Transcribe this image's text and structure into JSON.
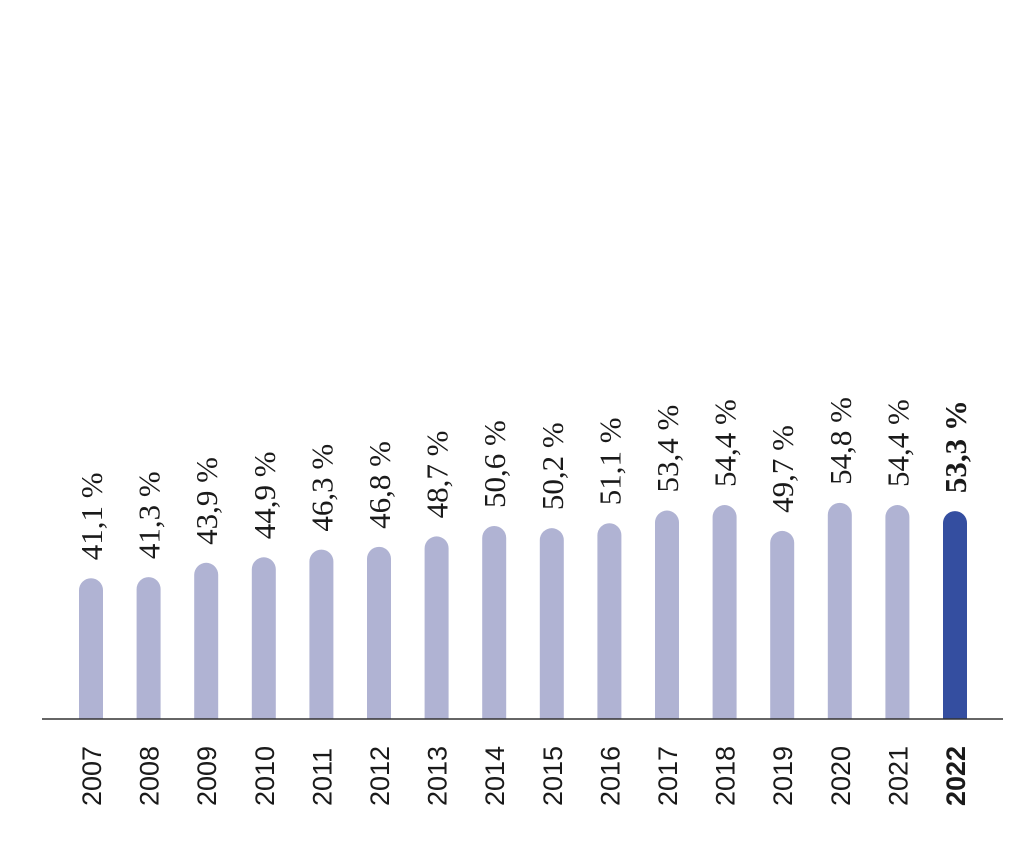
{
  "chart_data": {
    "type": "bar",
    "categories": [
      "2007",
      "2008",
      "2009",
      "2010",
      "2011",
      "2012",
      "2013",
      "2014",
      "2015",
      "2016",
      "2017",
      "2018",
      "2019",
      "2020",
      "2021",
      "2022"
    ],
    "values": [
      41.1,
      41.3,
      43.9,
      44.9,
      46.3,
      46.8,
      48.7,
      50.6,
      50.2,
      51.1,
      53.4,
      54.4,
      49.7,
      54.8,
      54.4,
      53.3
    ],
    "data_labels": [
      "41,1 %",
      "41,3 %",
      "43,9 %",
      "44,9 %",
      "46,3 %",
      "46,8 %",
      "48,7 %",
      "50,6 %",
      "50,2 %",
      "51,1 %",
      "53,4 %",
      "54,4 %",
      "49,7 %",
      "54,8 %",
      "54,4 %",
      "53,3 %"
    ],
    "highlight_category": "2022",
    "title": "",
    "xlabel": "",
    "ylabel": "",
    "grid": false,
    "legend": "none",
    "colors": {
      "bar": "#b0b3d3",
      "highlight": "#344ea0",
      "axis": "#333333",
      "text": "#1a1a1a"
    }
  }
}
